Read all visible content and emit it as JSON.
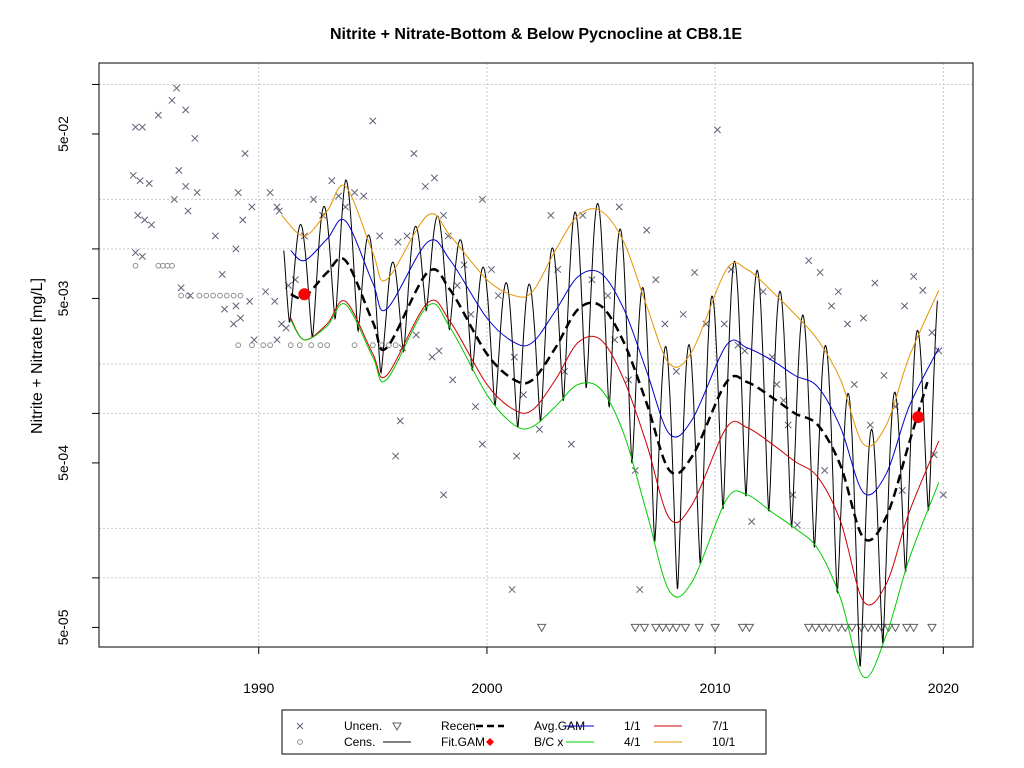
{
  "chart_data": {
    "type": "line",
    "title": "Nitrite + Nitrate-Bottom & Below Pycnocline at CB8.1E",
    "xlabel": "",
    "ylabel": "Nitrite + Nitrate [mg/L]",
    "x_ticks": [
      "1990",
      "2000",
      "2010",
      "2020"
    ],
    "y_ticks": [
      "5e-05",
      "5e-04",
      "5e-03",
      "5e-02"
    ],
    "xlim": [
      1983.0,
      2021.3
    ],
    "ylim": [
      3.8e-05,
      0.135
    ],
    "y_scale": "log10",
    "grid": true,
    "legend_position": "bottom",
    "legend": [
      {
        "label": "Uncen.",
        "symbol": "x"
      },
      {
        "label": "Cens.",
        "symbol": "o"
      },
      {
        "label": "Recen.",
        "symbol": "triangle-down"
      },
      {
        "label": "Fit.GAM",
        "symbol": "line"
      },
      {
        "label": "Avg.GAM",
        "symbol": "dashed-line"
      },
      {
        "label": "B/C x",
        "symbol": "filled-dot"
      },
      {
        "label": "1/1",
        "symbol": "line"
      },
      {
        "label": "4/1",
        "symbol": "line"
      },
      {
        "label": "7/1",
        "symbol": "line"
      },
      {
        "label": "10/1",
        "symbol": "line"
      }
    ],
    "colors": {
      "avg_gam": "#000000",
      "fit_gam": "#000000",
      "bc": "#ff0000",
      "d1_1": "#0000cc",
      "d4_1": "#00cc00",
      "d7_1": "#cc0000",
      "d10_1": "#e69500",
      "uncensored": "#606078",
      "censored": "#909090",
      "recensored": "#606060",
      "grid": "#c8c8c8"
    },
    "series": [
      {
        "name": "Avg.GAM",
        "style": "dashed",
        "x": [
          1991.4,
          1992,
          1993,
          1993.8,
          1995,
          1995.6,
          1997.4,
          1998.4,
          2000,
          2001.2,
          2002,
          2003,
          2004,
          2005,
          2006,
          2007,
          2008,
          2009,
          2010.5,
          2011.4,
          2012.5,
          2013.5,
          2014.5,
          2015.5,
          2016.5,
          2017.5,
          2018.5,
          2019.3
        ],
        "y": [
          0.0053,
          0.0051,
          0.0072,
          0.0085,
          0.0036,
          0.0025,
          0.0072,
          0.0056,
          0.0023,
          0.0016,
          0.0016,
          0.0025,
          0.0043,
          0.0045,
          0.0027,
          0.00115,
          0.00045,
          0.00055,
          0.00155,
          0.00155,
          0.00125,
          0.001,
          0.00085,
          0.00048,
          0.000175,
          0.000235,
          0.00066,
          0.00155
        ]
      },
      {
        "name": "1/1",
        "x": [
          1991.4,
          1992,
          1993,
          1993.8,
          1995,
          1995.6,
          1997.4,
          1998.4,
          2000,
          2001.2,
          2002,
          2003,
          2004,
          2005,
          2006,
          2007,
          2008,
          2009,
          2010.5,
          2011.4,
          2012.5,
          2013.5,
          2014.5,
          2015.5,
          2016.5,
          2017.5,
          2018.5,
          2019.8
        ],
        "y": [
          0.0098,
          0.0085,
          0.0115,
          0.0148,
          0.0062,
          0.0043,
          0.011,
          0.0085,
          0.0038,
          0.0027,
          0.0027,
          0.0042,
          0.0068,
          0.0071,
          0.0043,
          0.0018,
          0.00075,
          0.00092,
          0.0026,
          0.0025,
          0.0021,
          0.0017,
          0.00145,
          0.00082,
          0.00033,
          0.00043,
          0.0011,
          0.0025
        ]
      },
      {
        "name": "10/1",
        "x": [
          1991.0,
          1992,
          1993,
          1993.8,
          1995,
          1995.6,
          1997.4,
          1998.4,
          2000,
          2001.2,
          2002,
          2003,
          2004,
          2005,
          2006,
          2007,
          2008,
          2009,
          2010.5,
          2011.4,
          2012.5,
          2013.5,
          2014.5,
          2015.5,
          2016.5,
          2017.5,
          2018.5,
          2019.8
        ],
        "y": [
          0.016,
          0.012,
          0.017,
          0.024,
          0.0095,
          0.0065,
          0.016,
          0.012,
          0.0065,
          0.0052,
          0.0055,
          0.0098,
          0.016,
          0.017,
          0.011,
          0.0045,
          0.002,
          0.0024,
          0.0075,
          0.0075,
          0.0055,
          0.004,
          0.0028,
          0.0016,
          0.00065,
          0.00085,
          0.0022,
          0.0056
        ]
      },
      {
        "name": "7/1",
        "x": [
          1991.4,
          1992,
          1993,
          1993.8,
          1995,
          1995.6,
          1997.4,
          1998.4,
          2000,
          2001.2,
          2002,
          2003,
          2004,
          2005,
          2006,
          2007,
          2008,
          2009,
          2010.5,
          2011.4,
          2012.5,
          2013.5,
          2014.5,
          2015.5,
          2016.5,
          2017.5,
          2018.5,
          2019.8
        ],
        "y": [
          0.0038,
          0.0028,
          0.0035,
          0.0048,
          0.0023,
          0.0017,
          0.0047,
          0.0036,
          0.0015,
          0.00105,
          0.00105,
          0.0016,
          0.0027,
          0.0028,
          0.0016,
          0.00065,
          0.00023,
          0.00028,
          0.00082,
          0.00082,
          0.00065,
          0.00051,
          0.00041,
          0.00022,
          7.2e-05,
          9.2e-05,
          0.00025,
          0.00068
        ]
      },
      {
        "name": "4/1",
        "x": [
          1991.4,
          1992,
          1993,
          1993.8,
          1995,
          1995.6,
          1997.4,
          1998.4,
          2000,
          2001.2,
          2002,
          2003,
          2004,
          2005,
          2006,
          2007,
          2008,
          2009,
          2010.5,
          2011.4,
          2012.5,
          2013.5,
          2014.5,
          2015.5,
          2016.5,
          2017.5,
          2018.5,
          2019.8
        ],
        "y": [
          0.0037,
          0.0028,
          0.0034,
          0.0046,
          0.0022,
          0.0016,
          0.0045,
          0.0033,
          0.0013,
          0.00085,
          0.00083,
          0.0011,
          0.0015,
          0.0014,
          0.00075,
          0.00025,
          8.3e-05,
          9.5e-05,
          0.0003,
          0.00032,
          0.00025,
          0.0002,
          0.00015,
          7.5e-05,
          2.5e-05,
          4.5e-05,
          0.00013,
          0.00038
        ]
      }
    ],
    "bc_points": [
      {
        "x": 1992.0,
        "y": 0.0053
      },
      {
        "x": 2018.9,
        "y": 0.00095
      }
    ],
    "uncensored_points": [
      {
        "x": 1984.6,
        "y": 0.055
      },
      {
        "x": 1984.9,
        "y": 0.055
      },
      {
        "x": 1984.5,
        "y": 0.028
      },
      {
        "x": 1984.8,
        "y": 0.026
      },
      {
        "x": 1985.2,
        "y": 0.025
      },
      {
        "x": 1984.7,
        "y": 0.016
      },
      {
        "x": 1985.0,
        "y": 0.015
      },
      {
        "x": 1985.3,
        "y": 0.014
      },
      {
        "x": 1984.6,
        "y": 0.0095
      },
      {
        "x": 1984.9,
        "y": 0.009
      },
      {
        "x": 1985.6,
        "y": 0.065
      },
      {
        "x": 1986.2,
        "y": 0.08
      },
      {
        "x": 1986.4,
        "y": 0.095
      },
      {
        "x": 1986.8,
        "y": 0.07
      },
      {
        "x": 1987.2,
        "y": 0.047
      },
      {
        "x": 1986.5,
        "y": 0.03
      },
      {
        "x": 1986.8,
        "y": 0.024
      },
      {
        "x": 1987.3,
        "y": 0.022
      },
      {
        "x": 1986.3,
        "y": 0.02
      },
      {
        "x": 1986.9,
        "y": 0.017
      },
      {
        "x": 1988.1,
        "y": 0.012
      },
      {
        "x": 1988.4,
        "y": 0.007
      },
      {
        "x": 1986.6,
        "y": 0.0058
      },
      {
        "x": 1987.0,
        "y": 0.0052
      },
      {
        "x": 1988.5,
        "y": 0.0043
      },
      {
        "x": 1989.0,
        "y": 0.0045
      },
      {
        "x": 1989.6,
        "y": 0.0048
      },
      {
        "x": 1988.9,
        "y": 0.0035
      },
      {
        "x": 1989.2,
        "y": 0.0038
      },
      {
        "x": 1989.8,
        "y": 0.0028
      },
      {
        "x": 1989.4,
        "y": 0.038
      },
      {
        "x": 1989.1,
        "y": 0.022
      },
      {
        "x": 1989.7,
        "y": 0.018
      },
      {
        "x": 1989.3,
        "y": 0.015
      },
      {
        "x": 1989.0,
        "y": 0.01
      },
      {
        "x": 1990.3,
        "y": 0.0055
      },
      {
        "x": 1990.7,
        "y": 0.0048
      },
      {
        "x": 1991.0,
        "y": 0.0035
      },
      {
        "x": 1991.2,
        "y": 0.0033
      },
      {
        "x": 1990.8,
        "y": 0.0028
      },
      {
        "x": 1990.5,
        "y": 0.022
      },
      {
        "x": 1990.8,
        "y": 0.018
      },
      {
        "x": 1990.9,
        "y": 0.017
      },
      {
        "x": 1991.3,
        "y": 0.006
      },
      {
        "x": 1991.6,
        "y": 0.0065
      },
      {
        "x": 1992.0,
        "y": 0.012
      },
      {
        "x": 1992.4,
        "y": 0.02
      },
      {
        "x": 1992.8,
        "y": 0.016
      },
      {
        "x": 1993.2,
        "y": 0.026
      },
      {
        "x": 1993.5,
        "y": 0.021
      },
      {
        "x": 1993.8,
        "y": 0.018
      },
      {
        "x": 1994.2,
        "y": 0.022
      },
      {
        "x": 1994.6,
        "y": 0.021
      },
      {
        "x": 1995.0,
        "y": 0.06
      },
      {
        "x": 1995.3,
        "y": 0.012
      },
      {
        "x": 1996.1,
        "y": 0.011
      },
      {
        "x": 1996.5,
        "y": 0.012
      },
      {
        "x": 1996.8,
        "y": 0.038
      },
      {
        "x": 1997.3,
        "y": 0.024
      },
      {
        "x": 1997.7,
        "y": 0.027
      },
      {
        "x": 1998.1,
        "y": 0.016
      },
      {
        "x": 1998.3,
        "y": 0.012
      },
      {
        "x": 1998.7,
        "y": 0.006
      },
      {
        "x": 1999.0,
        "y": 0.008
      },
      {
        "x": 1999.3,
        "y": 0.004
      },
      {
        "x": 1996.3,
        "y": 0.0025
      },
      {
        "x": 1996.9,
        "y": 0.003
      },
      {
        "x": 1997.6,
        "y": 0.0022
      },
      {
        "x": 1997.9,
        "y": 0.0024
      },
      {
        "x": 1998.5,
        "y": 0.0016
      },
      {
        "x": 1996.2,
        "y": 0.0009
      },
      {
        "x": 1996.0,
        "y": 0.00055
      },
      {
        "x": 1998.1,
        "y": 0.00032
      },
      {
        "x": 1999.5,
        "y": 0.0011
      },
      {
        "x": 1999.8,
        "y": 0.00065
      },
      {
        "x": 1999.8,
        "y": 0.02
      },
      {
        "x": 2000.2,
        "y": 0.0075
      },
      {
        "x": 2000.5,
        "y": 0.0052
      },
      {
        "x": 2001.2,
        "y": 0.0022
      },
      {
        "x": 2001.6,
        "y": 0.0013
      },
      {
        "x": 2001.1,
        "y": 8.5e-05
      },
      {
        "x": 2001.3,
        "y": 0.00055
      },
      {
        "x": 2002.3,
        "y": 0.0008
      },
      {
        "x": 2002.8,
        "y": 0.016
      },
      {
        "x": 2003.1,
        "y": 0.0075
      },
      {
        "x": 2003.4,
        "y": 0.0018
      },
      {
        "x": 2003.7,
        "y": 0.00065
      },
      {
        "x": 2004.2,
        "y": 0.016
      },
      {
        "x": 2004.6,
        "y": 0.0065
      },
      {
        "x": 2005.3,
        "y": 0.0052
      },
      {
        "x": 2005.6,
        "y": 0.0028
      },
      {
        "x": 2005.8,
        "y": 0.018
      },
      {
        "x": 2006.2,
        "y": 0.0016
      },
      {
        "x": 2006.5,
        "y": 0.00045
      },
      {
        "x": 2006.7,
        "y": 8.5e-05
      },
      {
        "x": 2007.0,
        "y": 0.013
      },
      {
        "x": 2007.4,
        "y": 0.0065
      },
      {
        "x": 2007.8,
        "y": 0.0035
      },
      {
        "x": 2008.3,
        "y": 0.0018
      },
      {
        "x": 2008.6,
        "y": 0.004
      },
      {
        "x": 2009.1,
        "y": 0.0072
      },
      {
        "x": 2009.6,
        "y": 0.0035
      },
      {
        "x": 2010.1,
        "y": 0.053
      },
      {
        "x": 2010.4,
        "y": 0.0035
      },
      {
        "x": 2010.7,
        "y": 0.0075
      },
      {
        "x": 2011.0,
        "y": 0.0026
      },
      {
        "x": 2011.3,
        "y": 0.0024
      },
      {
        "x": 2011.6,
        "y": 0.00022
      },
      {
        "x": 2012.1,
        "y": 0.0055
      },
      {
        "x": 2012.5,
        "y": 0.0022
      },
      {
        "x": 2012.7,
        "y": 0.0015
      },
      {
        "x": 2013.0,
        "y": 0.0012
      },
      {
        "x": 2013.2,
        "y": 0.00085
      },
      {
        "x": 2013.6,
        "y": 0.00021
      },
      {
        "x": 2014.1,
        "y": 0.0085
      },
      {
        "x": 2014.6,
        "y": 0.0072
      },
      {
        "x": 2015.1,
        "y": 0.0045
      },
      {
        "x": 2015.4,
        "y": 0.0055
      },
      {
        "x": 2015.8,
        "y": 0.0035
      },
      {
        "x": 2016.1,
        "y": 0.0015
      },
      {
        "x": 2016.5,
        "y": 0.0038
      },
      {
        "x": 2017.0,
        "y": 0.0062
      },
      {
        "x": 2017.4,
        "y": 0.0017
      },
      {
        "x": 2017.9,
        "y": 0.0011
      },
      {
        "x": 2018.3,
        "y": 0.0045
      },
      {
        "x": 2018.7,
        "y": 0.0068
      },
      {
        "x": 2019.1,
        "y": 0.0056
      },
      {
        "x": 2019.5,
        "y": 0.0031
      },
      {
        "x": 2019.8,
        "y": 0.0024
      },
      {
        "x": 2014.8,
        "y": 0.00045
      },
      {
        "x": 2016.8,
        "y": 0.00085
      },
      {
        "x": 2018.2,
        "y": 0.00034
      },
      {
        "x": 2019.6,
        "y": 0.00056
      },
      {
        "x": 2020.0,
        "y": 0.00032
      },
      {
        "x": 2013.4,
        "y": 0.00032
      }
    ],
    "censored_points": [
      {
        "x": 1984.6,
        "y": 0.0079
      },
      {
        "x": 1985.6,
        "y": 0.0079
      },
      {
        "x": 1985.8,
        "y": 0.0079
      },
      {
        "x": 1986.0,
        "y": 0.0079
      },
      {
        "x": 1986.2,
        "y": 0.0079
      },
      {
        "x": 1986.6,
        "y": 0.0052
      },
      {
        "x": 1986.9,
        "y": 0.0052
      },
      {
        "x": 1987.4,
        "y": 0.0052
      },
      {
        "x": 1987.7,
        "y": 0.0052
      },
      {
        "x": 1988.0,
        "y": 0.0052
      },
      {
        "x": 1988.3,
        "y": 0.0052
      },
      {
        "x": 1988.6,
        "y": 0.0052
      },
      {
        "x": 1988.9,
        "y": 0.0052
      },
      {
        "x": 1989.2,
        "y": 0.0052
      },
      {
        "x": 1989.1,
        "y": 0.0026
      },
      {
        "x": 1989.7,
        "y": 0.0026
      },
      {
        "x": 1990.2,
        "y": 0.0026
      },
      {
        "x": 1990.5,
        "y": 0.0026
      },
      {
        "x": 1991.4,
        "y": 0.0026
      },
      {
        "x": 1991.8,
        "y": 0.0026
      },
      {
        "x": 1992.3,
        "y": 0.0026
      },
      {
        "x": 1992.7,
        "y": 0.0026
      },
      {
        "x": 1993.0,
        "y": 0.0026
      },
      {
        "x": 1994.2,
        "y": 0.0026
      },
      {
        "x": 1995.0,
        "y": 0.0026
      },
      {
        "x": 1995.4,
        "y": 0.0026
      },
      {
        "x": 1995.7,
        "y": 0.0026
      },
      {
        "x": 1996.0,
        "y": 0.0026
      }
    ],
    "recensored_points": [
      {
        "x": 2002.4,
        "y": 5e-05
      },
      {
        "x": 2006.5,
        "y": 5e-05
      },
      {
        "x": 2006.9,
        "y": 5e-05
      },
      {
        "x": 2007.4,
        "y": 5e-05
      },
      {
        "x": 2007.7,
        "y": 5e-05
      },
      {
        "x": 2008.0,
        "y": 5e-05
      },
      {
        "x": 2008.3,
        "y": 5e-05
      },
      {
        "x": 2008.7,
        "y": 5e-05
      },
      {
        "x": 2009.3,
        "y": 5e-05
      },
      {
        "x": 2010.0,
        "y": 5e-05
      },
      {
        "x": 2011.2,
        "y": 5e-05
      },
      {
        "x": 2011.5,
        "y": 5e-05
      },
      {
        "x": 2014.1,
        "y": 5e-05
      },
      {
        "x": 2014.4,
        "y": 5e-05
      },
      {
        "x": 2014.7,
        "y": 5e-05
      },
      {
        "x": 2015.0,
        "y": 5e-05
      },
      {
        "x": 2015.4,
        "y": 5e-05
      },
      {
        "x": 2015.7,
        "y": 5e-05
      },
      {
        "x": 2016.0,
        "y": 5e-05
      },
      {
        "x": 2016.4,
        "y": 5e-05
      },
      {
        "x": 2016.7,
        "y": 5e-05
      },
      {
        "x": 2017.0,
        "y": 5e-05
      },
      {
        "x": 2017.3,
        "y": 5e-05
      },
      {
        "x": 2017.6,
        "y": 5e-05
      },
      {
        "x": 2017.9,
        "y": 5e-05
      },
      {
        "x": 2018.4,
        "y": 5e-05
      },
      {
        "x": 2018.7,
        "y": 5e-05
      },
      {
        "x": 2019.5,
        "y": 5e-05
      }
    ]
  }
}
